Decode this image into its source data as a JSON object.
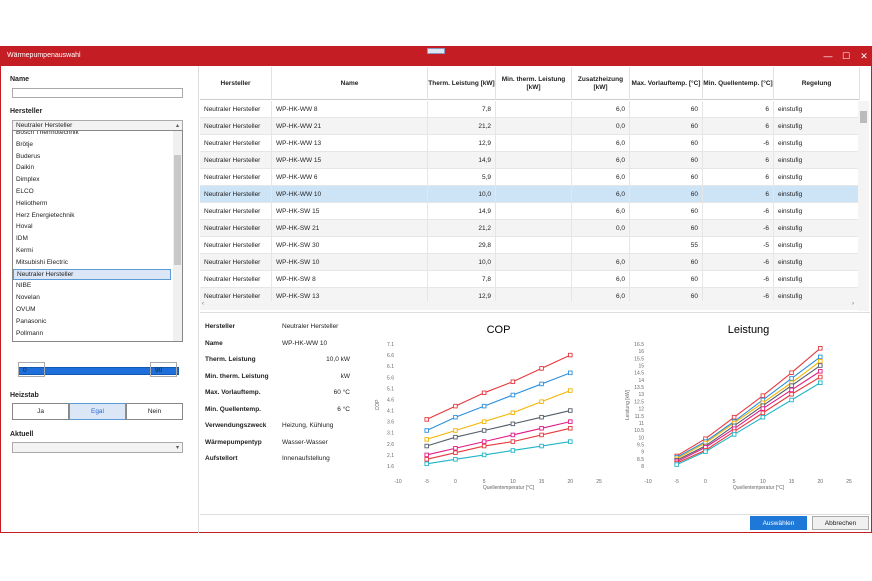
{
  "window": {
    "title": "Wärmepumpenauswahl",
    "minimize": "—",
    "maximize": "☐",
    "close": "✕"
  },
  "left": {
    "name_label": "Name",
    "name_value": "",
    "manufacturer_label": "Hersteller",
    "manufacturer_value": "Neutraler Hersteller",
    "manufacturer_options": [
      "Bosch Thermotechnik",
      "Brötje",
      "Buderus",
      "Daikin",
      "Dimplex",
      "ELCO",
      "Heliotherm",
      "Herz Energietechnik",
      "Hoval",
      "IDM",
      "Kermi",
      "Mitsubishi Electric",
      "Neutraler Hersteller",
      "NIBE",
      "Novelan",
      "OVUM",
      "Panasonic",
      "Pollmann"
    ],
    "selected_index": 12,
    "range_min": "0",
    "range_max": "90",
    "heizstab_label": "Heizstab",
    "heizstab_options": [
      "Ja",
      "Egal",
      "Nein"
    ],
    "heizstab_selected": "Egal",
    "aktuell_label": "Aktuell",
    "aktuell_value": ""
  },
  "table": {
    "headers": [
      "Hersteller",
      "Name",
      "Therm. Leistung [kW]",
      "Min. therm. Leistung [kW]",
      "Zusatzheizung [kW]",
      "Max. Vorlauftemp. [°C]",
      "Min. Quellentemp. [°C]",
      "Regelung"
    ],
    "rows": [
      [
        "Neutraler Hersteller",
        "WP-HK-WW 8",
        "7,8",
        "",
        "6,0",
        "60",
        "6",
        "einstufig"
      ],
      [
        "Neutraler Hersteller",
        "WP-HK-WW 21",
        "21,2",
        "",
        "0,0",
        "60",
        "6",
        "einstufig"
      ],
      [
        "Neutraler Hersteller",
        "WP-HK-WW 13",
        "12,9",
        "",
        "6,0",
        "60",
        "-6",
        "einstufig"
      ],
      [
        "Neutraler Hersteller",
        "WP-HK-WW 15",
        "14,9",
        "",
        "6,0",
        "60",
        "6",
        "einstufig"
      ],
      [
        "Neutraler Hersteller",
        "WP-HK-WW 6",
        "5,9",
        "",
        "6,0",
        "60",
        "6",
        "einstufig"
      ],
      [
        "Neutraler Hersteller",
        "WP-HK-WW 10",
        "10,0",
        "",
        "6,0",
        "60",
        "6",
        "einstufig"
      ],
      [
        "Neutraler Hersteller",
        "WP-HK-SW 15",
        "14,9",
        "",
        "6,0",
        "60",
        "-6",
        "einstufig"
      ],
      [
        "Neutraler Hersteller",
        "WP-HK-SW 21",
        "21,2",
        "",
        "0,0",
        "60",
        "-6",
        "einstufig"
      ],
      [
        "Neutraler Hersteller",
        "WP-HK-SW 30",
        "29,8",
        "",
        "",
        "55",
        "-5",
        "einstufig"
      ],
      [
        "Neutraler Hersteller",
        "WP-HK-SW 10",
        "10,0",
        "",
        "6,0",
        "60",
        "-6",
        "einstufig"
      ],
      [
        "Neutraler Hersteller",
        "WP-HK-SW 8",
        "7,8",
        "",
        "6,0",
        "60",
        "-6",
        "einstufig"
      ],
      [
        "Neutraler Hersteller",
        "WP-HK-SW 13",
        "12,9",
        "",
        "6,0",
        "60",
        "-6",
        "einstufig"
      ]
    ],
    "highlight_row": 5
  },
  "details": {
    "rows": [
      {
        "label": "Hersteller",
        "value": "Neutraler Hersteller"
      },
      {
        "label": "Name",
        "value": "WP-HK-WW 10"
      },
      {
        "label": "Therm. Leistung",
        "value": "10,0  kW"
      },
      {
        "label": "Min. therm. Leistung",
        "value": "kW"
      },
      {
        "label": "Max. Vorlauftemp.",
        "value": "60  °C"
      },
      {
        "label": "Min. Quellentemp.",
        "value": "6  °C"
      },
      {
        "label": "Verwendungszweck",
        "value": "Heizung, Kühlung"
      },
      {
        "label": "Wärmepumpentyp",
        "value": "Wasser-Wasser"
      },
      {
        "label": "Aufstellort",
        "value": "Innenaufstellung"
      }
    ]
  },
  "chart_data": [
    {
      "type": "line",
      "title": "COP",
      "xlabel": "Quellentemperatur [°C]",
      "ylabel": "COP",
      "xlim": [
        -10,
        25
      ],
      "ylim": [
        1.6,
        7.1
      ],
      "xticks": [
        "-10",
        "-5",
        "0",
        "5",
        "10",
        "15",
        "20",
        "25"
      ],
      "yticks": [
        "1.6",
        "2.1",
        "2.6",
        "3.1",
        "3.6",
        "4.1",
        "4.6",
        "5.1",
        "5.6",
        "6.1",
        "6.6",
        "7.1"
      ],
      "x": [
        -5,
        0,
        5,
        10,
        15,
        20
      ],
      "series": [
        {
          "color": "#e8383d",
          "values": [
            3.7,
            4.3,
            4.9,
            5.4,
            6.0,
            6.6
          ]
        },
        {
          "color": "#2d8fdd",
          "values": [
            3.2,
            3.8,
            4.3,
            4.8,
            5.3,
            5.8
          ]
        },
        {
          "color": "#f5b400",
          "values": [
            2.8,
            3.2,
            3.6,
            4.0,
            4.5,
            5.0
          ]
        },
        {
          "color": "#555e6b",
          "values": [
            2.5,
            2.9,
            3.2,
            3.5,
            3.8,
            4.1
          ]
        },
        {
          "color": "#e21a86",
          "values": [
            2.1,
            2.4,
            2.7,
            3.0,
            3.3,
            3.6
          ]
        },
        {
          "color": "#e8383d",
          "values": [
            1.9,
            2.2,
            2.5,
            2.7,
            3.0,
            3.3
          ]
        },
        {
          "color": "#1fb5c8",
          "values": [
            1.7,
            1.9,
            2.1,
            2.3,
            2.5,
            2.7
          ]
        }
      ]
    },
    {
      "type": "line",
      "title": "Leistung",
      "xlabel": "Quellentemperatur [°C]",
      "ylabel": "Leistung [kW]",
      "xlim": [
        -10,
        25
      ],
      "ylim": [
        8,
        16.5
      ],
      "xticks": [
        "-10",
        "-5",
        "0",
        "5",
        "10",
        "15",
        "20",
        "25"
      ],
      "yticks": [
        "8",
        "8.5",
        "9",
        "9.5",
        "10",
        "10.5",
        "11",
        "11.5",
        "12",
        "12.5",
        "13",
        "13.5",
        "14",
        "14.5",
        "15",
        "15.5",
        "16",
        "16.5"
      ],
      "x": [
        -5,
        0,
        5,
        10,
        15,
        20
      ],
      "series": [
        {
          "color": "#e8383d",
          "values": [
            8.7,
            9.9,
            11.4,
            12.9,
            14.5,
            16.2
          ]
        },
        {
          "color": "#2d8fdd",
          "values": [
            8.6,
            9.7,
            11.1,
            12.6,
            14.1,
            15.6
          ]
        },
        {
          "color": "#f5b400",
          "values": [
            8.5,
            9.6,
            11.0,
            12.4,
            13.8,
            15.3
          ]
        },
        {
          "color": "#555e6b",
          "values": [
            8.4,
            9.4,
            10.8,
            12.2,
            13.6,
            15.0
          ]
        },
        {
          "color": "#e21a86",
          "values": [
            8.3,
            9.3,
            10.6,
            12.0,
            13.3,
            14.6
          ]
        },
        {
          "color": "#e8383d",
          "values": [
            8.2,
            9.1,
            10.4,
            11.7,
            13.0,
            14.2
          ]
        },
        {
          "color": "#1fb5c8",
          "values": [
            8.1,
            9.0,
            10.2,
            11.4,
            12.6,
            13.8
          ]
        }
      ]
    }
  ],
  "footer": {
    "select_label": "Auswählen",
    "cancel_label": "Abbrechen"
  }
}
